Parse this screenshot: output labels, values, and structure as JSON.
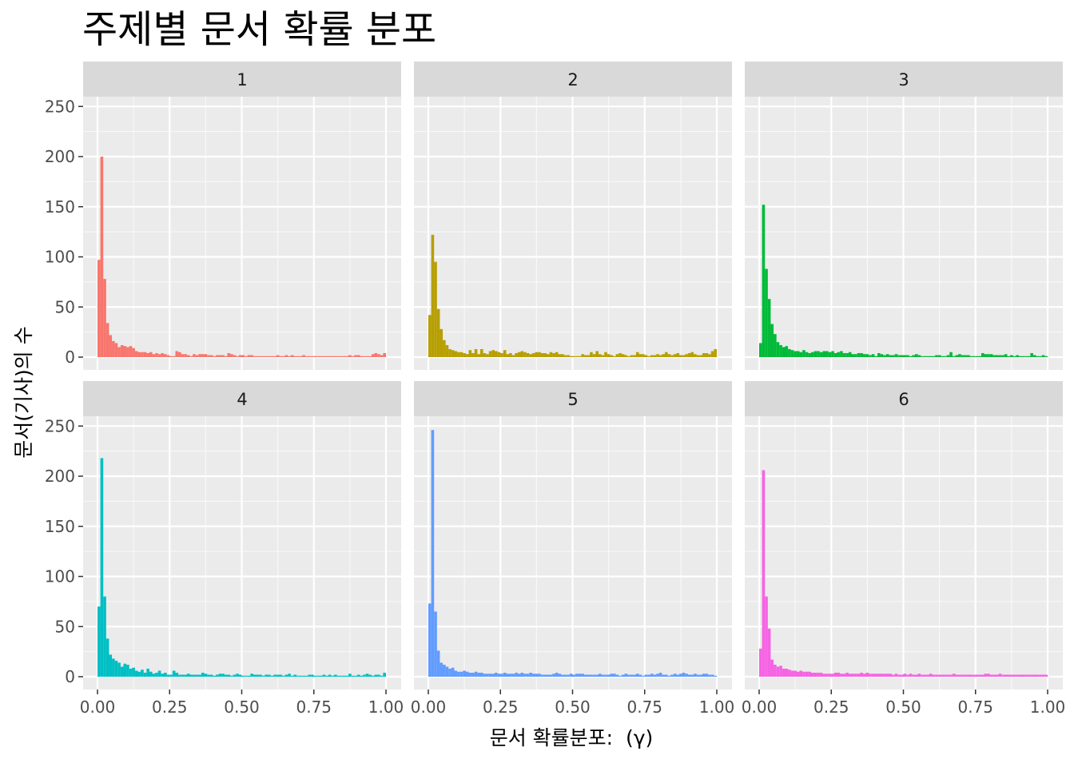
{
  "chart_data": {
    "type": "bar",
    "title": "주제별 문서 확률 분포",
    "xlabel": "문서 확률분포:  (γ)",
    "ylabel": "문서(기사)의 수",
    "xlim": [
      0,
      1
    ],
    "ylim": [
      0,
      250
    ],
    "xticks": [
      "0.00",
      "0.25",
      "0.50",
      "0.75",
      "1.00"
    ],
    "yticks": [
      "0",
      "50",
      "100",
      "150",
      "200",
      "250"
    ],
    "grid": true,
    "layout": "facet-grid 2x3",
    "bin_width": 0.01,
    "series": [
      {
        "name": "1",
        "color": "#F8766D",
        "values": [
          97,
          200,
          78,
          34,
          22,
          16,
          14,
          10,
          12,
          11,
          10,
          11,
          9,
          6,
          5,
          5,
          5,
          4,
          5,
          3,
          4,
          3,
          4,
          3,
          2,
          1,
          1,
          6,
          5,
          3,
          3,
          2,
          1,
          3,
          2,
          3,
          3,
          3,
          2,
          2,
          1,
          2,
          2,
          2,
          1,
          4,
          3,
          2,
          1,
          2,
          2,
          1,
          2,
          2,
          1,
          1,
          1,
          1,
          1,
          1,
          1,
          1,
          2,
          1,
          1,
          2,
          1,
          2,
          1,
          1,
          1,
          2,
          1,
          1,
          1,
          1,
          1,
          1,
          1,
          1,
          1,
          1,
          1,
          1,
          1,
          1,
          1,
          2,
          1,
          2,
          2,
          1,
          1,
          1,
          1,
          3,
          4,
          3,
          2,
          4
        ]
      },
      {
        "name": "2",
        "color": "#B79F00",
        "values": [
          42,
          122,
          95,
          48,
          28,
          17,
          12,
          8,
          7,
          6,
          5,
          5,
          4,
          3,
          7,
          4,
          8,
          3,
          8,
          4,
          3,
          6,
          7,
          6,
          5,
          4,
          7,
          3,
          4,
          2,
          4,
          5,
          6,
          5,
          4,
          3,
          4,
          5,
          5,
          4,
          4,
          3,
          5,
          4,
          5,
          3,
          3,
          2,
          2,
          1,
          1,
          1,
          1,
          3,
          2,
          2,
          5,
          3,
          6,
          3,
          2,
          5,
          3,
          2,
          1,
          3,
          4,
          3,
          2,
          1,
          2,
          2,
          5,
          3,
          3,
          2,
          1,
          2,
          2,
          3,
          2,
          3,
          5,
          3,
          2,
          3,
          4,
          2,
          2,
          3,
          4,
          5,
          3,
          2,
          2,
          4,
          4,
          3,
          6,
          8
        ]
      },
      {
        "name": "3",
        "color": "#00BA38",
        "values": [
          14,
          152,
          88,
          58,
          33,
          23,
          15,
          12,
          10,
          11,
          8,
          7,
          6,
          6,
          5,
          7,
          5,
          4,
          5,
          6,
          6,
          5,
          6,
          6,
          5,
          6,
          4,
          5,
          6,
          4,
          4,
          5,
          3,
          3,
          4,
          4,
          3,
          3,
          2,
          3,
          1,
          4,
          3,
          2,
          3,
          2,
          2,
          3,
          2,
          2,
          2,
          2,
          1,
          2,
          3,
          2,
          1,
          1,
          1,
          1,
          1,
          2,
          2,
          1,
          1,
          2,
          5,
          1,
          2,
          3,
          2,
          2,
          2,
          1,
          1,
          1,
          1,
          4,
          3,
          3,
          3,
          2,
          2,
          2,
          2,
          3,
          1,
          2,
          1,
          2,
          1,
          1,
          1,
          1,
          4,
          2,
          1,
          1,
          2,
          1
        ]
      },
      {
        "name": "4",
        "color": "#00BFC4",
        "values": [
          70,
          218,
          80,
          38,
          22,
          18,
          16,
          14,
          10,
          13,
          12,
          8,
          9,
          6,
          5,
          7,
          4,
          8,
          5,
          3,
          4,
          6,
          3,
          4,
          2,
          2,
          6,
          4,
          2,
          2,
          2,
          3,
          2,
          2,
          2,
          2,
          4,
          3,
          2,
          2,
          1,
          2,
          3,
          3,
          2,
          2,
          1,
          2,
          3,
          2,
          1,
          1,
          1,
          3,
          2,
          2,
          2,
          1,
          2,
          2,
          1,
          2,
          2,
          2,
          1,
          2,
          3,
          1,
          2,
          1,
          1,
          1,
          1,
          2,
          2,
          1,
          1,
          1,
          2,
          1,
          2,
          1,
          2,
          1,
          1,
          1,
          1,
          3,
          1,
          1,
          2,
          1,
          2,
          3,
          2,
          1,
          2,
          2,
          1,
          4
        ]
      },
      {
        "name": "5",
        "color": "#619CFF",
        "values": [
          73,
          246,
          65,
          26,
          14,
          12,
          10,
          8,
          9,
          6,
          5,
          5,
          6,
          5,
          4,
          4,
          5,
          4,
          4,
          3,
          3,
          3,
          3,
          4,
          3,
          3,
          4,
          3,
          3,
          3,
          4,
          3,
          4,
          3,
          3,
          4,
          3,
          3,
          3,
          2,
          2,
          2,
          2,
          3,
          4,
          3,
          2,
          2,
          2,
          3,
          2,
          3,
          3,
          3,
          2,
          2,
          2,
          2,
          2,
          3,
          2,
          2,
          2,
          3,
          3,
          2,
          1,
          2,
          3,
          2,
          2,
          2,
          3,
          2,
          1,
          2,
          2,
          3,
          2,
          3,
          4,
          2,
          2,
          1,
          2,
          3,
          2,
          3,
          4,
          3,
          2,
          2,
          3,
          2,
          2,
          3,
          3,
          2,
          2,
          1
        ]
      },
      {
        "name": "6",
        "color": "#F564E3",
        "values": [
          28,
          206,
          80,
          48,
          17,
          12,
          10,
          11,
          8,
          8,
          7,
          6,
          6,
          5,
          6,
          5,
          5,
          5,
          4,
          4,
          4,
          4,
          3,
          3,
          3,
          3,
          4,
          4,
          3,
          3,
          4,
          3,
          3,
          3,
          3,
          4,
          3,
          4,
          3,
          3,
          3,
          3,
          3,
          3,
          3,
          3,
          2,
          3,
          2,
          2,
          3,
          2,
          3,
          2,
          2,
          3,
          2,
          2,
          2,
          3,
          2,
          2,
          2,
          2,
          2,
          2,
          2,
          3,
          2,
          2,
          2,
          2,
          2,
          2,
          2,
          2,
          2,
          2,
          3,
          3,
          2,
          2,
          2,
          3,
          2,
          2,
          2,
          2,
          2,
          2,
          2,
          2,
          2,
          2,
          2,
          2,
          2,
          2,
          2,
          2
        ]
      }
    ]
  }
}
